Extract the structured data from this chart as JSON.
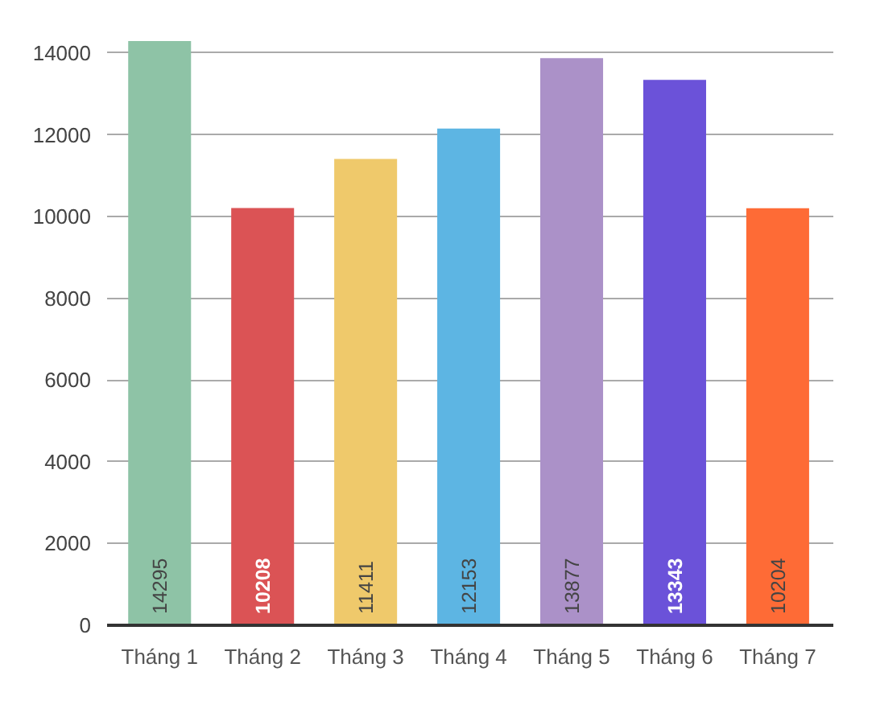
{
  "chart_data": {
    "type": "bar",
    "categories": [
      "Tháng 1",
      "Tháng 2",
      "Tháng 3",
      "Tháng 4",
      "Tháng 5",
      "Tháng 6",
      "Tháng 7"
    ],
    "values": [
      14295,
      10208,
      11411,
      12153,
      13877,
      13343,
      10204
    ],
    "colors": [
      "#8ec3a6",
      "#db5355",
      "#efc96b",
      "#5db5e3",
      "#ab91c8",
      "#6b52d9",
      "#fe6b36"
    ],
    "ylim": [
      0,
      14295
    ],
    "yticks": [
      0,
      2000,
      4000,
      6000,
      8000,
      10000,
      12000,
      14000
    ],
    "grid": "y",
    "data_labels": true
  }
}
